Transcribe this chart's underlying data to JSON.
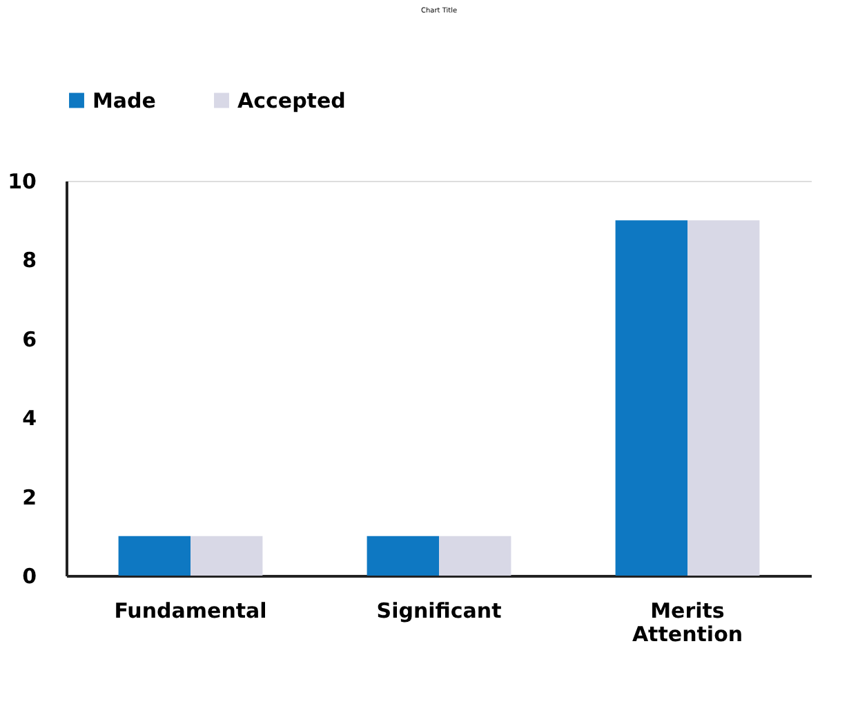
{
  "chart_data": {
    "type": "bar",
    "title": "Chart Title",
    "categories": [
      "Fundamental",
      "Significant",
      "Merits Attention"
    ],
    "series": [
      {
        "name": "Made",
        "color": "#0e78c2",
        "values": [
          1,
          1,
          9
        ]
      },
      {
        "name": "Accepted",
        "color": "#d8d8e6",
        "values": [
          1,
          1,
          9
        ]
      }
    ],
    "ylim": [
      0,
      10
    ],
    "yticks": [
      0,
      2,
      4,
      6,
      8,
      10
    ],
    "grid": false,
    "legend": "top"
  }
}
